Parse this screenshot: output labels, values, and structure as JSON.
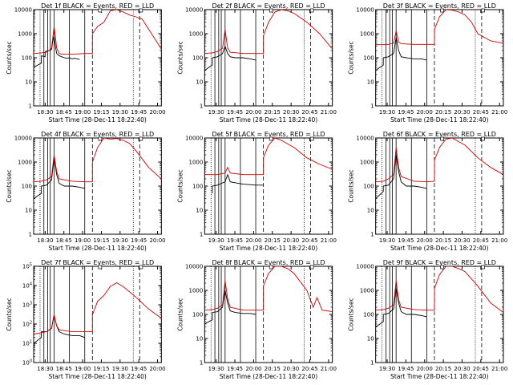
{
  "figure": {
    "background": "#ffffff",
    "axis_color": "#000000"
  },
  "colors": {
    "events": "#000000",
    "lld": "#cc0000"
  },
  "common": {
    "xlabel": "Start Time (28-Dec-11 18:22:40)",
    "ylabel": "Counts/sec",
    "xtick_labels": [
      "18:30",
      "18:45",
      "19:00",
      "19:15",
      "19:30",
      "19:45",
      "20:00",
      "20:15",
      "20:30",
      "20:45",
      "21:00"
    ],
    "xtick_labels_variant": [
      "19:30",
      "19:45",
      "20:00",
      "20:15",
      "20:30",
      "20:45",
      "21:00"
    ],
    "ylim": [
      1,
      10000
    ],
    "yscale": "log"
  },
  "chart_data": [
    {
      "type": "line",
      "title": "Det 1f BLACK = Events, RED = LLD",
      "ylim": [
        1,
        10000
      ],
      "yticks": [
        "1",
        "10",
        "100",
        "1000",
        "10000"
      ],
      "series": [
        {
          "name": "BLACK",
          "color": "#000000",
          "x": [
            0.0,
            0.06,
            0.06,
            0.09,
            0.09,
            0.12,
            0.14,
            0.15,
            0.16,
            0.17,
            0.18,
            0.2,
            0.22,
            0.24,
            0.26,
            0.28,
            0.3,
            0.32,
            0.34,
            0.36
          ],
          "values": [
            40,
            60,
            120,
            110,
            180,
            200,
            220,
            500,
            800,
            300,
            150,
            120,
            110,
            100,
            95,
            100,
            90,
            95,
            90,
            85
          ]
        },
        {
          "name": "RED",
          "color": "#cc0000",
          "x": [
            0.0,
            0.06,
            0.1,
            0.12,
            0.14,
            0.15,
            0.16,
            0.17,
            0.18,
            0.2,
            0.22,
            0.3,
            0.35,
            0.4,
            0.46,
            0.46,
            0.5,
            0.55,
            0.6,
            0.65,
            0.7,
            0.75,
            0.8,
            0.85,
            1.0
          ],
          "values": [
            150,
            160,
            170,
            200,
            250,
            700,
            2000,
            800,
            250,
            150,
            140,
            140,
            145,
            150,
            150,
            1000,
            2000,
            3000,
            9000,
            9900,
            8000,
            6000,
            5000,
            4000,
            230
          ]
        }
      ]
    },
    {
      "type": "line",
      "title": "Det 2f BLACK = Events, RED = LLD",
      "ylim": [
        1,
        10000
      ],
      "yticks": [
        "1",
        "10",
        "100",
        "1000",
        "10000"
      ],
      "series": [
        {
          "name": "BLACK",
          "color": "#000000",
          "x": [
            0.0,
            0.06,
            0.06,
            0.1,
            0.14,
            0.16,
            0.18,
            0.2,
            0.24,
            0.3,
            0.36,
            0.4
          ],
          "values": [
            30,
            50,
            100,
            110,
            150,
            300,
            150,
            110,
            100,
            100,
            90,
            80
          ]
        },
        {
          "name": "RED",
          "color": "#cc0000",
          "x": [
            0.0,
            0.06,
            0.1,
            0.14,
            0.15,
            0.16,
            0.17,
            0.18,
            0.2,
            0.3,
            0.4,
            0.46,
            0.46,
            0.5,
            0.55,
            0.6,
            0.65,
            0.7,
            0.8,
            0.9,
            1.0
          ],
          "values": [
            150,
            160,
            180,
            250,
            600,
            1500,
            600,
            250,
            170,
            150,
            150,
            150,
            800,
            3000,
            8000,
            9900,
            9000,
            7000,
            3000,
            1000,
            230
          ]
        }
      ]
    },
    {
      "type": "line",
      "title": "Det 3f BLACK = Events, RED = LLD",
      "ylim": [
        1,
        10000
      ],
      "yticks": [
        "1",
        "10",
        "100",
        "1000",
        "10000"
      ],
      "series": [
        {
          "name": "BLACK",
          "color": "#000000",
          "x": [
            0.0,
            0.06,
            0.06,
            0.1,
            0.14,
            0.16,
            0.18,
            0.2,
            0.24,
            0.3,
            0.36,
            0.4
          ],
          "values": [
            30,
            50,
            100,
            110,
            150,
            700,
            200,
            110,
            100,
            90,
            90,
            80
          ]
        },
        {
          "name": "RED",
          "color": "#cc0000",
          "x": [
            0.0,
            0.06,
            0.1,
            0.14,
            0.16,
            0.18,
            0.2,
            0.3,
            0.4,
            0.46,
            0.46,
            0.5,
            0.55,
            0.6,
            0.65,
            0.7,
            0.75,
            0.8,
            0.9,
            1.0
          ],
          "values": [
            350,
            350,
            360,
            400,
            1300,
            450,
            380,
            360,
            360,
            360,
            1500,
            5000,
            9900,
            9500,
            8000,
            6000,
            3000,
            1000,
            500,
            400
          ]
        }
      ]
    },
    {
      "type": "line",
      "title": "Det 4f BLACK = Events, RED = LLD",
      "ylim": [
        1,
        10000
      ],
      "yticks": [
        "1",
        "10",
        "100",
        "1000",
        "10000"
      ],
      "series": [
        {
          "name": "BLACK",
          "color": "#000000",
          "x": [
            0.0,
            0.06,
            0.06,
            0.1,
            0.14,
            0.16,
            0.18,
            0.2,
            0.24,
            0.3,
            0.36,
            0.4
          ],
          "values": [
            30,
            50,
            100,
            110,
            180,
            1500,
            300,
            130,
            100,
            100,
            90,
            80
          ]
        },
        {
          "name": "RED",
          "color": "#cc0000",
          "x": [
            0.0,
            0.06,
            0.1,
            0.14,
            0.16,
            0.18,
            0.2,
            0.3,
            0.4,
            0.46,
            0.46,
            0.5,
            0.55,
            0.6,
            0.65,
            0.7,
            0.75,
            0.8,
            0.9,
            1.0
          ],
          "values": [
            150,
            160,
            180,
            250,
            2000,
            400,
            200,
            160,
            150,
            150,
            1000,
            4000,
            9900,
            9000,
            9500,
            8000,
            6000,
            3000,
            600,
            200
          ]
        }
      ]
    },
    {
      "type": "line",
      "title": "Det 5f BLACK = Events, RED = LLD",
      "ylim": [
        1,
        10000
      ],
      "yticks": [
        "1",
        "10",
        "100",
        "1000",
        "10000"
      ],
      "series": [
        {
          "name": "BLACK",
          "color": "#000000",
          "x": [
            0.06,
            0.06,
            0.1,
            0.16,
            0.18,
            0.2,
            0.3,
            0.4,
            0.46
          ],
          "values": [
            50,
            100,
            110,
            150,
            300,
            150,
            120,
            110,
            110
          ]
        },
        {
          "name": "RED",
          "color": "#cc0000",
          "x": [
            0.0,
            0.1,
            0.16,
            0.18,
            0.2,
            0.3,
            0.4,
            0.46,
            0.46,
            0.5,
            0.55,
            0.6,
            0.7,
            0.8,
            0.9,
            1.0
          ],
          "values": [
            300,
            300,
            350,
            600,
            350,
            300,
            300,
            300,
            1500,
            5000,
            9900,
            8000,
            4000,
            1500,
            800,
            500
          ]
        }
      ]
    },
    {
      "type": "line",
      "title": "Det 6f BLACK = Events, RED = LLD",
      "ylim": [
        1,
        10000
      ],
      "yticks": [
        "1",
        "10",
        "100",
        "1000",
        "10000"
      ],
      "series": [
        {
          "name": "BLACK",
          "color": "#000000",
          "x": [
            0.0,
            0.06,
            0.06,
            0.1,
            0.14,
            0.16,
            0.18,
            0.2,
            0.24,
            0.3,
            0.36,
            0.4
          ],
          "values": [
            30,
            60,
            100,
            110,
            200,
            2000,
            400,
            150,
            100,
            100,
            90,
            80
          ]
        },
        {
          "name": "RED",
          "color": "#cc0000",
          "x": [
            0.0,
            0.06,
            0.1,
            0.14,
            0.16,
            0.18,
            0.2,
            0.3,
            0.4,
            0.46,
            0.46,
            0.5,
            0.55,
            0.6,
            0.65,
            0.7,
            0.8,
            0.9,
            1.0
          ],
          "values": [
            150,
            160,
            200,
            300,
            4000,
            600,
            250,
            160,
            150,
            160,
            1200,
            4000,
            9000,
            9900,
            7000,
            5000,
            1500,
            600,
            300
          ]
        }
      ]
    },
    {
      "type": "line",
      "title": "Det 7f BLACK = Events, RED = LLD",
      "ylim": [
        1,
        100000
      ],
      "yticks": [
        "10^0",
        "10^1",
        "10^2",
        "10^3",
        "10^4",
        "10^5"
      ],
      "series": [
        {
          "name": "BLACK",
          "color": "#000000",
          "x": [
            0.0,
            0.06,
            0.06,
            0.1,
            0.14,
            0.16,
            0.18,
            0.2,
            0.24,
            0.3,
            0.36,
            0.4
          ],
          "values": [
            10,
            20,
            40,
            40,
            60,
            300,
            80,
            40,
            30,
            25,
            25,
            20
          ]
        },
        {
          "name": "RED",
          "color": "#cc0000",
          "x": [
            0.0,
            0.06,
            0.1,
            0.14,
            0.16,
            0.18,
            0.2,
            0.3,
            0.4,
            0.46,
            0.46,
            0.5,
            0.55,
            0.6,
            0.65,
            0.7,
            0.8,
            0.9,
            1.0
          ],
          "values": [
            30,
            35,
            40,
            60,
            300,
            80,
            50,
            40,
            40,
            40,
            300,
            1500,
            3000,
            9000,
            14000,
            9000,
            2500,
            600,
            200
          ]
        }
      ]
    },
    {
      "type": "line",
      "title": "Det 8f BLACK = Events, RED = LLD",
      "ylim": [
        1,
        10000
      ],
      "yticks": [
        "1",
        "10",
        "100",
        "1000",
        "10000"
      ],
      "series": [
        {
          "name": "BLACK",
          "color": "#000000",
          "x": [
            0.0,
            0.06,
            0.06,
            0.1,
            0.14,
            0.16,
            0.18,
            0.2,
            0.24,
            0.3,
            0.36,
            0.4
          ],
          "values": [
            40,
            60,
            120,
            130,
            200,
            1000,
            300,
            140,
            120,
            110,
            110,
            100
          ]
        },
        {
          "name": "RED",
          "color": "#cc0000",
          "x": [
            0.0,
            0.06,
            0.1,
            0.14,
            0.16,
            0.18,
            0.2,
            0.3,
            0.4,
            0.46,
            0.46,
            0.5,
            0.55,
            0.6,
            0.65,
            0.7,
            0.8,
            0.85,
            0.88,
            0.92,
            1.0
          ],
          "values": [
            150,
            160,
            180,
            250,
            2500,
            450,
            200,
            150,
            150,
            150,
            1500,
            5000,
            9900,
            9900,
            8000,
            5000,
            1000,
            200,
            500,
            150,
            130
          ]
        }
      ]
    },
    {
      "type": "line",
      "title": "Det 9f BLACK = Events, RED = LLD",
      "ylim": [
        1,
        10000
      ],
      "yticks": [
        "1",
        "10",
        "100",
        "1000",
        "10000"
      ],
      "series": [
        {
          "name": "BLACK",
          "color": "#000000",
          "x": [
            0.0,
            0.06,
            0.06,
            0.1,
            0.14,
            0.16,
            0.18,
            0.2,
            0.24,
            0.3,
            0.36,
            0.4
          ],
          "values": [
            30,
            50,
            100,
            110,
            170,
            1200,
            300,
            130,
            100,
            100,
            90,
            80
          ]
        },
        {
          "name": "RED",
          "color": "#cc0000",
          "x": [
            0.0,
            0.06,
            0.1,
            0.14,
            0.16,
            0.18,
            0.2,
            0.3,
            0.4,
            0.46,
            0.46,
            0.5,
            0.55,
            0.6,
            0.65,
            0.7,
            0.8,
            0.9,
            1.0
          ],
          "values": [
            150,
            160,
            180,
            250,
            2500,
            400,
            200,
            160,
            150,
            150,
            1200,
            4500,
            9900,
            9900,
            8000,
            6000,
            1500,
            300,
            120
          ]
        }
      ]
    }
  ]
}
